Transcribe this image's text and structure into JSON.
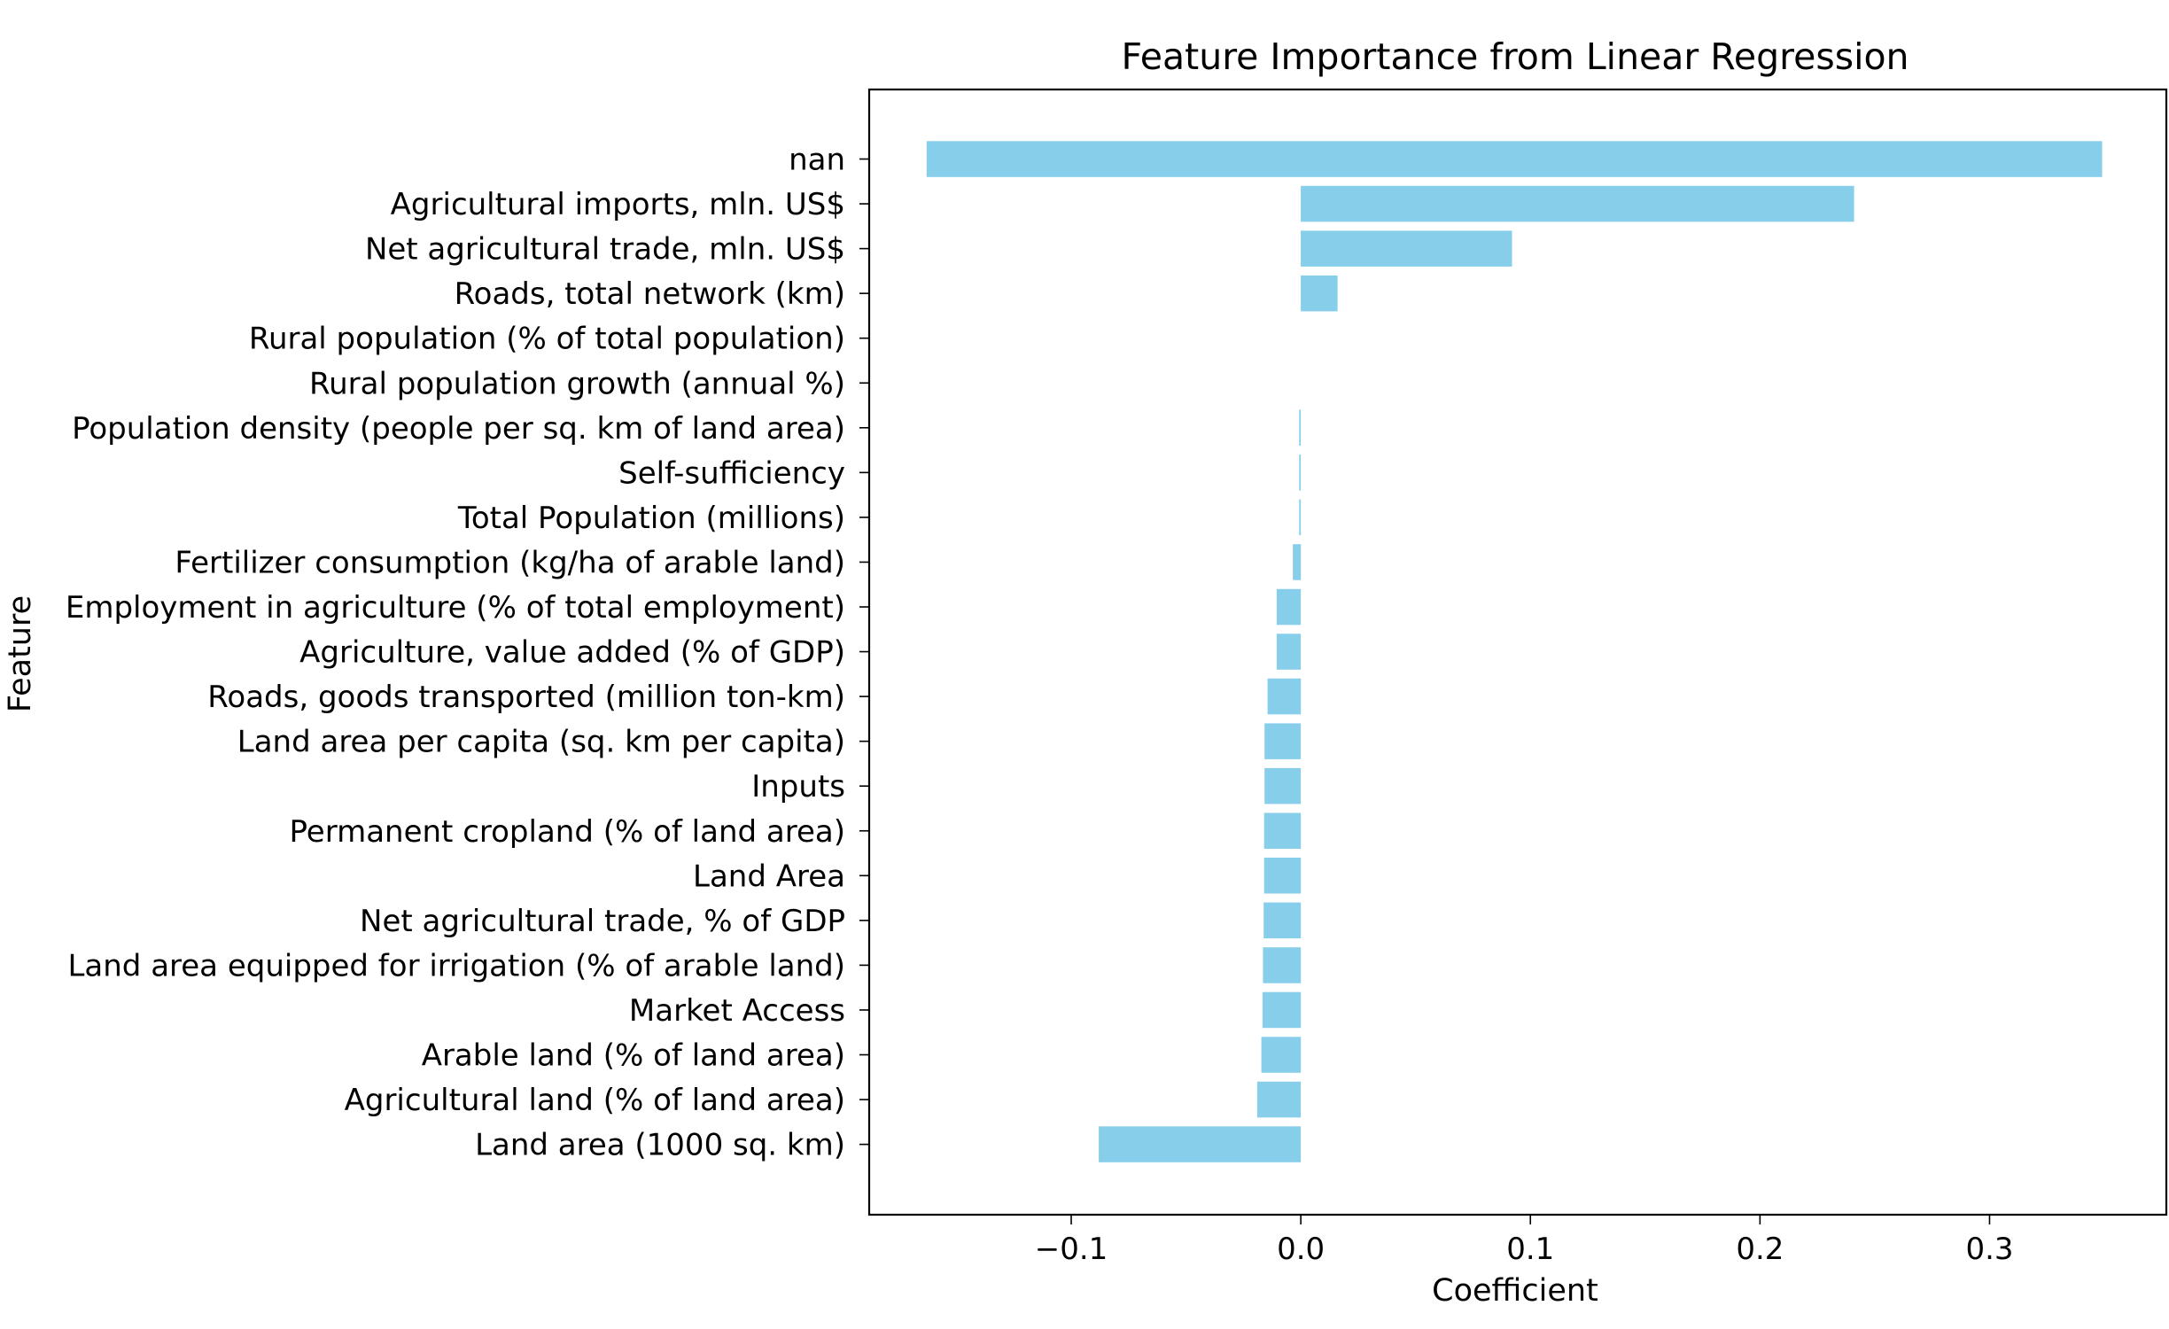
{
  "chart_data": {
    "type": "bar",
    "orientation": "horizontal",
    "title": "Feature Importance from Linear Regression",
    "xlabel": "Coefficient",
    "ylabel": "Feature",
    "bar_color": "#87CEEB",
    "grid": false,
    "xlim": [
      -0.188,
      0.377
    ],
    "xticks": [
      -0.1,
      0.0,
      0.1,
      0.2,
      0.3
    ],
    "xtick_labels": [
      "−0.1",
      "0.0",
      "0.1",
      "0.2",
      "0.3"
    ],
    "categories": [
      "nan",
      "Agricultural imports, mln. US$",
      "Net agricultural trade, mln. US$",
      "Roads, total network (km)",
      "Rural population (% of total population)",
      "Rural population growth (annual %)",
      "Population density (people per sq. km of land area)",
      "Self-sufficiency",
      "Total Population (millions)",
      "Fertilizer consumption (kg/ha of arable land)",
      "Employment in agriculture (% of total employment)",
      "Agriculture, value added (% of GDP)",
      "Roads, goods transported (million ton-km)",
      "Land area per capita (sq. km per capita)",
      "Inputs",
      "Permanent cropland (% of land area)",
      "Land Area",
      "Net agricultural trade, % of GDP",
      "Land area equipped for irrigation (% of arable land)",
      "Market Access",
      "Arable land (% of land area)",
      "Agricultural land (% of land area)",
      "Land area (1000 sq. km)"
    ],
    "bar_ranges": [
      [
        -0.163,
        0.349
      ],
      [
        0.0,
        0.241
      ],
      [
        0.0,
        0.092
      ],
      [
        0.0,
        0.016
      ],
      [
        0.0,
        0.0
      ],
      [
        0.0,
        0.0
      ],
      [
        -0.0007,
        0.0
      ],
      [
        -0.0007,
        0.0
      ],
      [
        -0.0007,
        0.0
      ],
      [
        -0.0035,
        0.0
      ],
      [
        -0.0105,
        0.0
      ],
      [
        -0.0105,
        0.0
      ],
      [
        -0.0145,
        0.0
      ],
      [
        -0.0158,
        0.0
      ],
      [
        -0.0158,
        0.0
      ],
      [
        -0.016,
        0.0
      ],
      [
        -0.016,
        0.0
      ],
      [
        -0.0162,
        0.0
      ],
      [
        -0.0165,
        0.0
      ],
      [
        -0.0167,
        0.0
      ],
      [
        -0.0172,
        0.0
      ],
      [
        -0.019,
        0.0
      ],
      [
        -0.088,
        0.0
      ]
    ]
  }
}
